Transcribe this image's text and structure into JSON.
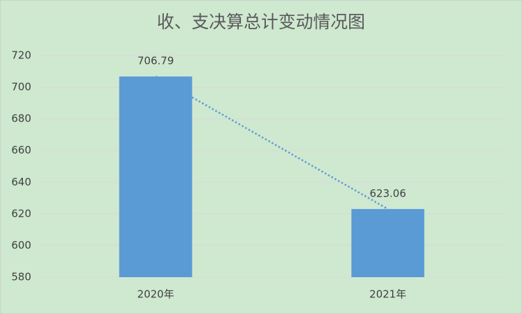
{
  "chart_data": {
    "type": "bar",
    "title": "收、支决算总计变动情况图",
    "categories": [
      "2020年",
      "2021年"
    ],
    "values": [
      706.79,
      623.06
    ],
    "color": "#5b9bd5",
    "ylim": [
      580,
      720
    ],
    "yticks": [
      580,
      600,
      620,
      640,
      660,
      680,
      700,
      720
    ],
    "grid": true,
    "trendline": true,
    "background": "#cfe8d0"
  }
}
